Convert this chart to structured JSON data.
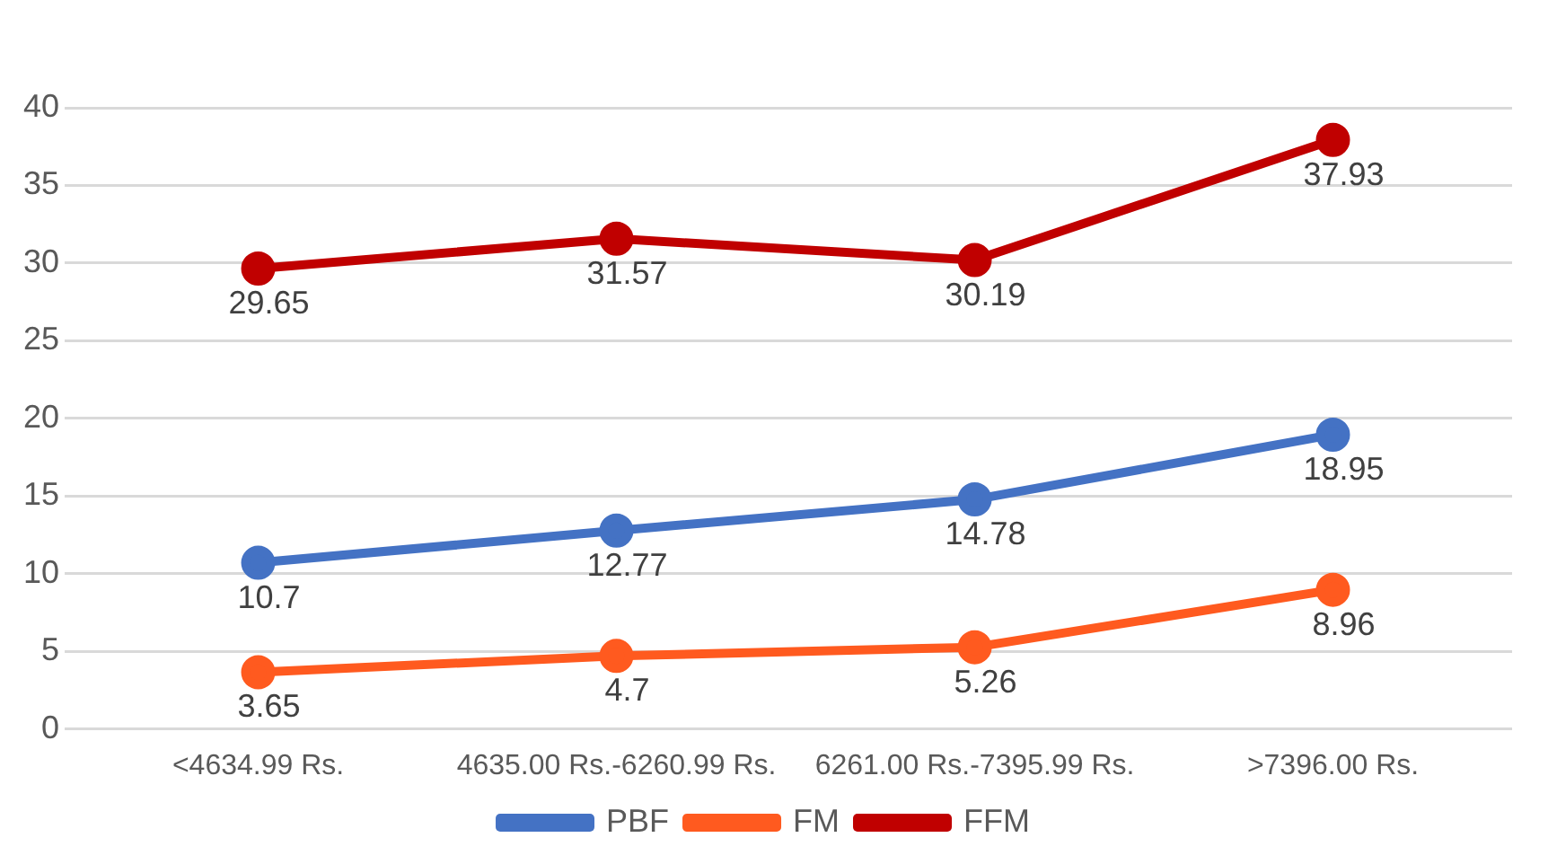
{
  "chart_data": {
    "type": "line",
    "categories": [
      "<4634.99 Rs.",
      "4635.00 Rs.-6260.99 Rs.",
      "6261.00 Rs.-7395.99 Rs.",
      ">7396.00 Rs."
    ],
    "series": [
      {
        "name": "PBF",
        "color": "#4472c4",
        "values": [
          10.7,
          12.77,
          14.78,
          18.95
        ]
      },
      {
        "name": "FM",
        "color": "#ff5a1f",
        "values": [
          3.65,
          4.7,
          5.26,
          8.96
        ]
      },
      {
        "name": "FFM",
        "color": "#c00000",
        "values": [
          29.65,
          31.57,
          30.19,
          37.93
        ]
      }
    ],
    "ylim": [
      0,
      40
    ],
    "yticks": [
      0,
      5,
      10,
      15,
      20,
      25,
      30,
      35,
      40
    ],
    "grid": "y",
    "legend": "bottom",
    "marker": "circle",
    "line_style": "solid",
    "data_labels": true
  }
}
